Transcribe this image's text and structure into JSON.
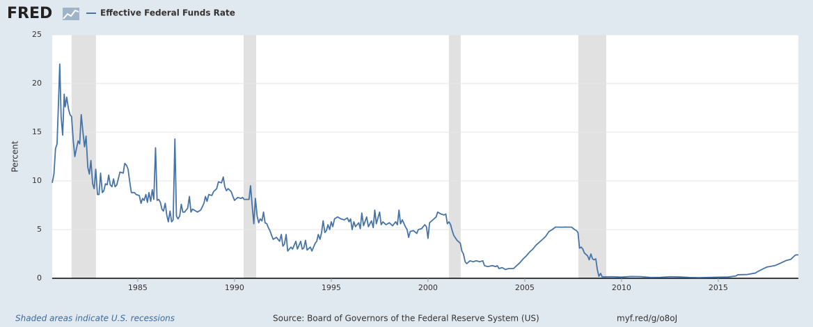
{
  "chart_data": {
    "type": "line",
    "logo": "FRED",
    "ylabel": "Percent",
    "note": "Shaded areas indicate U.S. recessions",
    "source": "Source: Board of Governors of the Federal Reserve System (US)",
    "link": "myf.red/g/o8oJ",
    "xlim": [
      1980.58,
      2019.14
    ],
    "xticks": [
      1985,
      1990,
      1995,
      2000,
      2005,
      2010,
      2015
    ],
    "ylim": [
      0,
      25
    ],
    "yticks": [
      0,
      5,
      10,
      15,
      20,
      25
    ],
    "grid": true,
    "recessions": [
      [
        1981.58,
        1982.84
      ],
      [
        1990.47,
        1991.12
      ],
      [
        2001.08,
        2001.69
      ],
      [
        2007.77,
        2009.21
      ]
    ],
    "recession_color": "#e1e1e1",
    "series": [
      {
        "name": "Effective Federal Funds Rate",
        "color": "#4572a7",
        "x": [
          1980.58,
          1980.67,
          1980.75,
          1980.83,
          1980.92,
          1980.97,
          1981.04,
          1981.12,
          1981.2,
          1981.25,
          1981.33,
          1981.42,
          1981.5,
          1981.58,
          1981.67,
          1981.75,
          1981.83,
          1981.92,
          1982.0,
          1982.08,
          1982.17,
          1982.25,
          1982.33,
          1982.42,
          1982.5,
          1982.58,
          1982.67,
          1982.75,
          1982.83,
          1982.92,
          1983.0,
          1983.08,
          1983.17,
          1983.25,
          1983.33,
          1983.42,
          1983.5,
          1983.58,
          1983.67,
          1983.75,
          1983.83,
          1983.92,
          1984.08,
          1984.25,
          1984.33,
          1984.42,
          1984.5,
          1984.58,
          1984.67,
          1984.83,
          1984.92,
          1985.08,
          1985.17,
          1985.25,
          1985.33,
          1985.42,
          1985.5,
          1985.58,
          1985.67,
          1985.75,
          1985.83,
          1985.92,
          1986.0,
          1986.08,
          1986.17,
          1986.25,
          1986.33,
          1986.42,
          1986.5,
          1986.58,
          1986.67,
          1986.75,
          1986.83,
          1986.92,
          1987.0,
          1987.08,
          1987.17,
          1987.25,
          1987.33,
          1987.42,
          1987.5,
          1987.58,
          1987.67,
          1987.75,
          1987.83,
          1987.92,
          1988.08,
          1988.25,
          1988.33,
          1988.42,
          1988.5,
          1988.58,
          1988.67,
          1988.83,
          1988.92,
          1989.08,
          1989.17,
          1989.33,
          1989.42,
          1989.5,
          1989.58,
          1989.67,
          1989.83,
          1989.92,
          1990.0,
          1990.17,
          1990.33,
          1990.42,
          1990.5,
          1990.67,
          1990.75,
          1990.83,
          1990.92,
          1991.0,
          1991.08,
          1991.17,
          1991.25,
          1991.33,
          1991.42,
          1991.5,
          1991.58,
          1991.67,
          1991.75,
          1991.83,
          1991.92,
          1992.0,
          1992.17,
          1992.33,
          1992.42,
          1992.5,
          1992.58,
          1992.67,
          1992.75,
          1992.92,
          1993.0,
          1993.17,
          1993.25,
          1993.42,
          1993.5,
          1993.58,
          1993.67,
          1993.75,
          1993.92,
          1994.0,
          1994.17,
          1994.25,
          1994.33,
          1994.42,
          1994.5,
          1994.58,
          1994.67,
          1994.75,
          1994.83,
          1994.92,
          1995.0,
          1995.08,
          1995.17,
          1995.33,
          1995.5,
          1995.67,
          1995.83,
          1995.92,
          1996.0,
          1996.08,
          1996.17,
          1996.25,
          1996.42,
          1996.5,
          1996.58,
          1996.67,
          1996.83,
          1996.92,
          1997.0,
          1997.08,
          1997.17,
          1997.25,
          1997.33,
          1997.5,
          1997.58,
          1997.67,
          1997.83,
          1998.0,
          1998.17,
          1998.33,
          1998.42,
          1998.5,
          1998.58,
          1998.67,
          1998.83,
          1998.92,
          1999.0,
          1999.08,
          1999.25,
          1999.42,
          1999.5,
          1999.67,
          1999.83,
          1999.92,
          2000.0,
          2000.08,
          2000.25,
          2000.42,
          2000.5,
          2000.67,
          2000.83,
          2000.92,
          2001.0,
          2001.08,
          2001.17,
          2001.25,
          2001.33,
          2001.5,
          2001.67,
          2001.75,
          2001.83,
          2001.92,
          2002.0,
          2002.17,
          2002.33,
          2002.5,
          2002.67,
          2002.83,
          2002.92,
          2003.08,
          2003.33,
          2003.5,
          2003.58,
          2003.67,
          2003.83,
          2004.0,
          2004.17,
          2004.42,
          2004.58,
          2004.75,
          2004.92,
          2005.08,
          2005.25,
          2005.42,
          2005.58,
          2005.75,
          2005.92,
          2006.08,
          2006.25,
          2006.42,
          2006.58,
          2006.75,
          2006.92,
          2007.08,
          2007.25,
          2007.42,
          2007.58,
          2007.67,
          2007.75,
          2007.83,
          2007.92,
          2008.0,
          2008.08,
          2008.25,
          2008.33,
          2008.42,
          2008.5,
          2008.58,
          2008.67,
          2008.75,
          2008.83,
          2008.92,
          2009.0,
          2009.5,
          2010.0,
          2010.5,
          2011.0,
          2011.5,
          2012.0,
          2012.5,
          2013.0,
          2013.5,
          2014.0,
          2014.5,
          2015.0,
          2015.5,
          2015.92,
          2016.0,
          2016.5,
          2016.92,
          2017.0,
          2017.25,
          2017.5,
          2017.92,
          2018.17,
          2018.5,
          2018.75,
          2018.92,
          2019.0,
          2019.14
        ],
        "values": [
          9.8,
          10.7,
          13.3,
          13.8,
          18.9,
          22.0,
          16.6,
          14.7,
          18.9,
          17.6,
          18.6,
          17.4,
          16.8,
          16.6,
          14.1,
          12.5,
          13.3,
          14.1,
          13.8,
          16.8,
          15.0,
          13.5,
          14.6,
          11.4,
          10.7,
          12.1,
          9.7,
          9.2,
          11.2,
          8.6,
          8.6,
          10.8,
          8.8,
          9.0,
          9.7,
          9.6,
          10.6,
          9.6,
          9.4,
          10.2,
          9.4,
          9.6,
          10.9,
          10.8,
          11.8,
          11.6,
          11.2,
          10.0,
          8.8,
          8.8,
          8.6,
          8.5,
          7.7,
          8.2,
          8.0,
          8.6,
          7.8,
          8.8,
          7.9,
          9.1,
          8.1,
          13.4,
          8.0,
          8.1,
          7.8,
          7.1,
          6.9,
          7.7,
          6.5,
          5.8,
          6.9,
          5.8,
          6.0,
          14.3,
          6.4,
          6.1,
          6.4,
          7.6,
          6.8,
          6.8,
          7.0,
          7.2,
          8.4,
          6.8,
          7.1,
          7.0,
          6.8,
          7.0,
          7.3,
          7.7,
          8.4,
          7.9,
          8.6,
          8.5,
          8.9,
          9.2,
          9.9,
          9.8,
          10.4,
          9.4,
          9.0,
          9.2,
          8.9,
          8.4,
          8.0,
          8.3,
          8.2,
          8.3,
          8.1,
          8.1,
          8.1,
          9.5,
          7.3,
          5.6,
          8.2,
          6.4,
          5.7,
          6.1,
          5.9,
          6.8,
          5.7,
          5.6,
          5.2,
          4.9,
          4.4,
          4.0,
          4.2,
          3.8,
          4.5,
          3.3,
          3.5,
          4.5,
          2.8,
          3.2,
          3.0,
          3.8,
          3.0,
          3.8,
          3.0,
          3.1,
          3.9,
          2.9,
          3.2,
          2.8,
          3.6,
          3.8,
          4.5,
          4.0,
          4.7,
          5.9,
          4.7,
          4.9,
          5.5,
          5.0,
          5.8,
          5.3,
          6.1,
          6.3,
          6.1,
          6.0,
          6.2,
          5.8,
          6.1,
          5.0,
          5.8,
          5.3,
          5.7,
          5.1,
          6.7,
          5.4,
          6.3,
          5.3,
          5.6,
          5.9,
          5.2,
          7.0,
          5.6,
          6.8,
          5.5,
          5.8,
          5.5,
          5.7,
          5.4,
          5.8,
          5.5,
          7.0,
          5.6,
          6.0,
          5.3,
          5.0,
          4.2,
          4.8,
          4.9,
          4.6,
          5.0,
          5.1,
          5.5,
          5.3,
          4.1,
          5.7,
          6.0,
          6.3,
          6.8,
          6.6,
          6.5,
          6.6,
          5.6,
          5.8,
          5.5,
          4.9,
          4.4,
          3.9,
          3.6,
          2.8,
          2.5,
          1.7,
          1.5,
          1.8,
          1.7,
          1.8,
          1.7,
          1.8,
          1.3,
          1.2,
          1.3,
          1.2,
          1.3,
          1.0,
          1.1,
          0.9,
          1.0,
          1.0,
          1.3,
          1.6,
          2.0,
          2.3,
          2.7,
          3.0,
          3.4,
          3.7,
          4.0,
          4.3,
          4.8,
          5.0,
          5.25,
          5.25,
          5.24,
          5.26,
          5.25,
          5.25,
          5.0,
          4.9,
          4.7,
          3.1,
          3.2,
          3.0,
          2.6,
          2.3,
          1.9,
          2.5,
          2.0,
          1.9,
          2.0,
          0.9,
          0.2,
          0.5,
          0.15,
          0.16,
          0.12,
          0.19,
          0.17,
          0.09,
          0.1,
          0.16,
          0.14,
          0.09,
          0.07,
          0.09,
          0.11,
          0.13,
          0.24,
          0.36,
          0.39,
          0.54,
          0.65,
          0.91,
          1.15,
          1.3,
          1.51,
          1.82,
          1.95,
          2.27,
          2.4,
          2.4
        ]
      }
    ]
  }
}
